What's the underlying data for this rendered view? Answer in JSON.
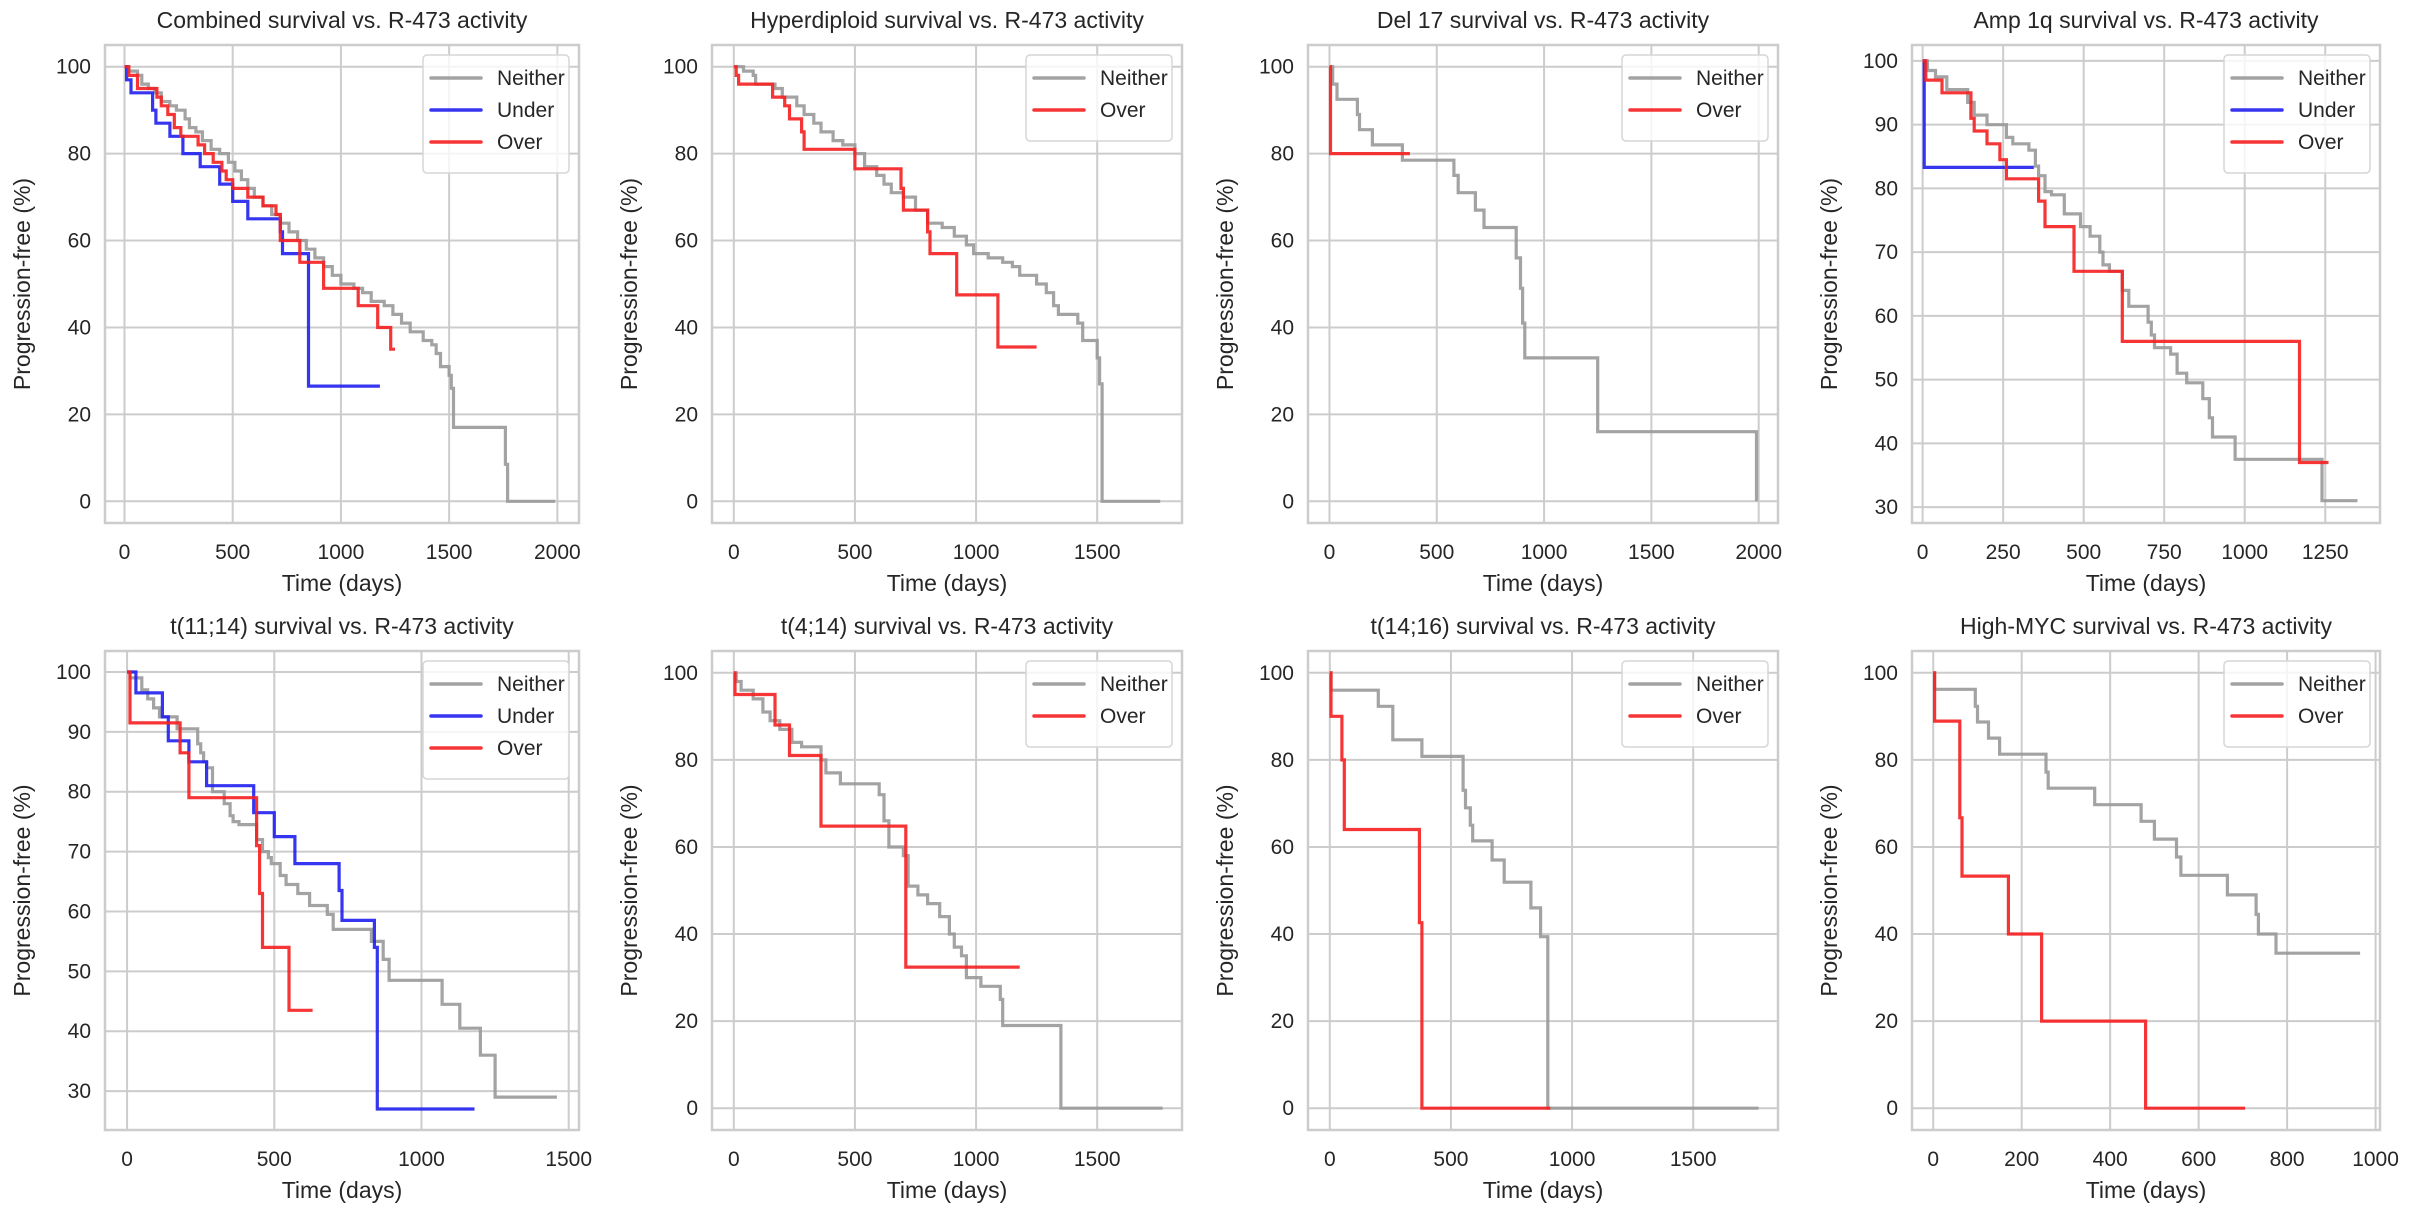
{
  "figure": {
    "colors": {
      "Neither": "#999999",
      "Under": "#2020f0",
      "Over": "#f52020"
    },
    "series_opacity": 0.9
  },
  "chart_data": [
    {
      "type": "line",
      "step": true,
      "title": "Combined survival vs. R-473 activity",
      "xlabel": "Time (days)",
      "ylabel": "Progression-free (%)",
      "xlim": [
        -90,
        2100
      ],
      "ylim": [
        -5,
        105
      ],
      "xticks": [
        0,
        500,
        1000,
        1500,
        2000
      ],
      "yticks": [
        0,
        20,
        40,
        60,
        80,
        100
      ],
      "grid": true,
      "legend": {
        "position": "top-right",
        "entries": [
          "Neither",
          "Under",
          "Over"
        ]
      },
      "series": [
        {
          "name": "Neither",
          "x": [
            0,
            20,
            60,
            80,
            110,
            140,
            170,
            210,
            240,
            280,
            300,
            330,
            360,
            400,
            440,
            480,
            510,
            540,
            570,
            600,
            640,
            680,
            720,
            760,
            800,
            840,
            880,
            920,
            960,
            1000,
            1060,
            1100,
            1140,
            1200,
            1240,
            1280,
            1320,
            1380,
            1420,
            1440,
            1460,
            1500,
            1510,
            1520,
            1760,
            1770,
            1990
          ],
          "y": [
            100,
            99,
            98,
            96,
            95,
            94,
            92,
            91,
            90,
            88,
            86,
            85,
            83,
            81,
            80,
            78,
            76,
            74,
            72,
            70,
            68,
            66,
            64,
            62,
            60,
            58,
            56,
            54,
            52,
            50,
            49,
            48,
            46,
            45,
            43,
            41,
            39,
            37,
            36,
            34,
            31,
            29,
            26,
            17,
            8.5,
            0,
            0
          ]
        },
        {
          "name": "Under",
          "x": [
            0,
            10,
            30,
            130,
            145,
            210,
            270,
            350,
            440,
            500,
            570,
            720,
            730,
            840,
            850,
            1180
          ],
          "y": [
            100,
            97,
            94,
            90,
            87,
            84,
            80,
            77,
            73,
            69,
            65,
            62,
            57,
            57,
            26.5,
            26.5
          ]
        },
        {
          "name": "Over",
          "x": [
            0,
            20,
            60,
            150,
            170,
            200,
            230,
            260,
            340,
            370,
            410,
            450,
            470,
            500,
            570,
            640,
            700,
            720,
            810,
            920,
            1080,
            1170,
            1230,
            1250
          ],
          "y": [
            100,
            98,
            95,
            93,
            91,
            89,
            86,
            84,
            82,
            80,
            78,
            76,
            74,
            72,
            70,
            68,
            66,
            60,
            55,
            49,
            45,
            40,
            35,
            35
          ]
        }
      ]
    },
    {
      "type": "line",
      "step": true,
      "title": "Hyperdiploid survival vs. R-473 activity",
      "xlabel": "Time (days)",
      "ylabel": "Progression-free (%)",
      "xlim": [
        -90,
        1850
      ],
      "ylim": [
        -5,
        105
      ],
      "xticks": [
        0,
        500,
        1000,
        1500
      ],
      "yticks": [
        0,
        20,
        40,
        60,
        80,
        100
      ],
      "grid": true,
      "legend": {
        "position": "top-right",
        "entries": [
          "Neither",
          "Over"
        ]
      },
      "series": [
        {
          "name": "Neither",
          "x": [
            0,
            40,
            80,
            90,
            170,
            200,
            260,
            290,
            330,
            360,
            410,
            450,
            500,
            540,
            590,
            620,
            650,
            700,
            750,
            800,
            860,
            910,
            960,
            990,
            1050,
            1110,
            1150,
            1180,
            1250,
            1290,
            1320,
            1340,
            1420,
            1440,
            1500,
            1510,
            1520,
            1760
          ],
          "y": [
            100,
            99,
            98,
            96,
            95,
            93,
            91,
            89,
            87,
            85,
            83,
            82,
            80,
            77,
            75,
            73,
            71,
            70,
            67,
            64,
            63,
            61,
            59,
            57,
            56,
            55,
            54,
            52,
            50,
            48,
            45,
            43,
            41,
            37,
            33,
            27,
            0,
            0
          ]
        },
        {
          "name": "Over",
          "x": [
            0,
            10,
            20,
            160,
            210,
            230,
            280,
            290,
            500,
            690,
            700,
            800,
            810,
            920,
            1090,
            1250
          ],
          "y": [
            100,
            98,
            96,
            93,
            91,
            88,
            85,
            81,
            76.5,
            72,
            67,
            62,
            57,
            47.5,
            35.5,
            35.5
          ]
        }
      ]
    },
    {
      "type": "line",
      "step": true,
      "title": "Del 17 survival vs. R-473 activity",
      "xlabel": "Time (days)",
      "ylabel": "Progression-free (%)",
      "xlim": [
        -100,
        2090
      ],
      "ylim": [
        -5,
        105
      ],
      "xticks": [
        0,
        500,
        1000,
        1500,
        2000
      ],
      "yticks": [
        0,
        20,
        40,
        60,
        80,
        100
      ],
      "grid": true,
      "legend": {
        "position": "top-right",
        "entries": [
          "Neither",
          "Over"
        ]
      },
      "series": [
        {
          "name": "Neither",
          "x": [
            0,
            15,
            35,
            130,
            140,
            200,
            340,
            580,
            600,
            680,
            720,
            870,
            890,
            900,
            910,
            1250,
            1990
          ],
          "y": [
            100,
            96,
            92.5,
            89,
            85.5,
            82,
            78.5,
            75,
            71,
            67,
            63,
            56,
            49,
            41,
            33,
            16,
            0
          ]
        },
        {
          "name": "Over",
          "x": [
            0,
            5,
            375
          ],
          "y": [
            100,
            80,
            80
          ]
        }
      ]
    },
    {
      "type": "line",
      "step": true,
      "title": "Amp 1q survival vs. R-473 activity",
      "xlabel": "Time (days)",
      "ylabel": "Progression-free (%)",
      "xlim": [
        -33,
        1420
      ],
      "ylim": [
        27.5,
        102.5
      ],
      "xticks": [
        0,
        250,
        500,
        750,
        1000,
        1250
      ],
      "yticks": [
        30,
        40,
        50,
        60,
        70,
        80,
        90,
        100
      ],
      "grid": true,
      "legend": {
        "position": "top-right",
        "entries": [
          "Neither",
          "Under",
          "Over"
        ]
      },
      "series": [
        {
          "name": "Neither",
          "x": [
            0,
            15,
            40,
            75,
            140,
            160,
            200,
            260,
            280,
            330,
            350,
            360,
            380,
            400,
            440,
            490,
            520,
            550,
            560,
            580,
            620,
            640,
            700,
            710,
            720,
            770,
            790,
            820,
            870,
            890,
            900,
            970,
            1240,
            1350
          ],
          "y": [
            100,
            98.5,
            97.5,
            95.5,
            93.5,
            91.5,
            90,
            88,
            87,
            86,
            83.5,
            82,
            79.5,
            79,
            76,
            74,
            72.5,
            70,
            68,
            67,
            64,
            61.5,
            59,
            57,
            55,
            54,
            51,
            49.5,
            47,
            44,
            41,
            37.5,
            31,
            31
          ]
        },
        {
          "name": "Under",
          "x": [
            0,
            5,
            345
          ],
          "y": [
            100,
            83.3,
            83.3
          ]
        },
        {
          "name": "Over",
          "x": [
            0,
            10,
            60,
            150,
            160,
            200,
            240,
            260,
            360,
            380,
            470,
            620,
            1170,
            1260
          ],
          "y": [
            100,
            97,
            95,
            91,
            89,
            87,
            84.5,
            81.5,
            78,
            74,
            67,
            56,
            37,
            37
          ]
        }
      ]
    },
    {
      "type": "line",
      "step": true,
      "title": "t(11;14) survival vs. R-473 activity",
      "xlabel": "Time (days)",
      "ylabel": "Progression-free (%)",
      "xlim": [
        -75,
        1535
      ],
      "ylim": [
        23.5,
        103.5
      ],
      "xticks": [
        0,
        500,
        1000,
        1500
      ],
      "yticks": [
        30,
        40,
        50,
        60,
        70,
        80,
        90,
        100
      ],
      "grid": true,
      "legend": {
        "position": "top-right",
        "entries": [
          "Neither",
          "Under",
          "Over"
        ]
      },
      "series": [
        {
          "name": "Neither",
          "x": [
            0,
            10,
            50,
            70,
            90,
            110,
            170,
            240,
            250,
            260,
            270,
            290,
            330,
            350,
            360,
            380,
            440,
            460,
            480,
            490,
            520,
            540,
            580,
            620,
            680,
            700,
            830,
            870,
            890,
            1070,
            1130,
            1200,
            1250,
            1460
          ],
          "y": [
            100,
            99,
            97,
            95.5,
            94,
            92.5,
            90.5,
            88,
            86.5,
            85,
            84,
            80,
            78,
            76,
            75,
            74.5,
            72,
            70,
            69,
            68,
            66,
            64.5,
            63,
            61,
            59.5,
            57,
            55,
            52,
            48.5,
            44.5,
            40.5,
            36,
            29,
            29
          ]
        },
        {
          "name": "Under",
          "x": [
            0,
            30,
            120,
            140,
            210,
            270,
            430,
            500,
            570,
            720,
            730,
            840,
            850,
            1180
          ],
          "y": [
            100,
            96.5,
            92.5,
            88.5,
            85,
            81,
            76.5,
            72.5,
            68,
            63.5,
            58.5,
            54,
            27,
            27
          ]
        },
        {
          "name": "Over",
          "x": [
            0,
            10,
            180,
            210,
            440,
            450,
            460,
            480,
            550,
            630
          ],
          "y": [
            100,
            91.5,
            86.5,
            79,
            71,
            63,
            54,
            54,
            43.5,
            43.5
          ]
        }
      ]
    },
    {
      "type": "line",
      "step": true,
      "title": "t(4;14) survival vs. R-473 activity",
      "xlabel": "Time (days)",
      "ylabel": "Progression-free (%)",
      "xlim": [
        -90,
        1850
      ],
      "ylim": [
        -5,
        105
      ],
      "xticks": [
        0,
        500,
        1000,
        1500
      ],
      "yticks": [
        0,
        20,
        40,
        60,
        80,
        100
      ],
      "grid": true,
      "legend": {
        "position": "top-right",
        "entries": [
          "Neither",
          "Over"
        ]
      },
      "series": [
        {
          "name": "Neither",
          "x": [
            0,
            10,
            30,
            80,
            120,
            150,
            190,
            240,
            280,
            360,
            380,
            440,
            600,
            620,
            640,
            700,
            720,
            760,
            800,
            850,
            890,
            910,
            940,
            960,
            1020,
            1100,
            1110,
            1350,
            1770
          ],
          "y": [
            100,
            98,
            96,
            94,
            91,
            89,
            87,
            84,
            83,
            80,
            77,
            74.5,
            72,
            66,
            60,
            58,
            51,
            49,
            47,
            44,
            40,
            37,
            35,
            30,
            28,
            25,
            19,
            0,
            0
          ]
        },
        {
          "name": "Over",
          "x": [
            0,
            5,
            170,
            230,
            360,
            710,
            1180
          ],
          "y": [
            100,
            95,
            88,
            81,
            64.8,
            32.4,
            32.4
          ]
        }
      ]
    },
    {
      "type": "line",
      "step": true,
      "title": "t(14;16) survival vs. R-473 activity",
      "xlabel": "Time (days)",
      "ylabel": "Progression-free (%)",
      "xlim": [
        -90,
        1850
      ],
      "ylim": [
        -5,
        105
      ],
      "xticks": [
        0,
        500,
        1000,
        1500
      ],
      "yticks": [
        0,
        20,
        40,
        60,
        80,
        100
      ],
      "grid": true,
      "legend": {
        "position": "top-right",
        "entries": [
          "Neither",
          "Over"
        ]
      },
      "series": [
        {
          "name": "Neither",
          "x": [
            0,
            5,
            200,
            260,
            380,
            550,
            560,
            580,
            590,
            670,
            720,
            830,
            870,
            900,
            1770
          ],
          "y": [
            100,
            96,
            92.3,
            84.6,
            80.8,
            73,
            69,
            65,
            61.4,
            57,
            51.9,
            46,
            39.4,
            0,
            0
          ]
        },
        {
          "name": "Over",
          "x": [
            0,
            5,
            50,
            60,
            370,
            380,
            390,
            910
          ],
          "y": [
            100,
            90,
            80,
            64,
            42.6,
            0,
            0,
            0
          ]
        }
      ]
    },
    {
      "type": "line",
      "step": true,
      "title": "High-MYC survival vs. R-473 activity",
      "xlabel": "Time (days)",
      "ylabel": "Progression-free (%)",
      "xlim": [
        -48,
        1010
      ],
      "ylim": [
        -5,
        105
      ],
      "xticks": [
        0,
        200,
        400,
        600,
        800,
        1000
      ],
      "yticks": [
        0,
        20,
        40,
        60,
        80,
        100
      ],
      "grid": true,
      "legend": {
        "position": "top-right",
        "entries": [
          "Neither",
          "Over"
        ]
      },
      "series": [
        {
          "name": "Neither",
          "x": [
            0,
            3,
            95,
            100,
            125,
            150,
            255,
            260,
            365,
            470,
            500,
            550,
            560,
            665,
            730,
            735,
            775,
            965
          ],
          "y": [
            100,
            96.2,
            92.3,
            88.7,
            85,
            81.3,
            77.2,
            73.5,
            69.7,
            65.9,
            61.8,
            57.7,
            53.5,
            49,
            44.5,
            40,
            35.6,
            35.6
          ]
        },
        {
          "name": "Over",
          "x": [
            0,
            3,
            60,
            65,
            170,
            245,
            480,
            705
          ],
          "y": [
            100,
            88.9,
            66.7,
            53.3,
            40,
            20,
            0,
            0
          ]
        }
      ]
    }
  ]
}
